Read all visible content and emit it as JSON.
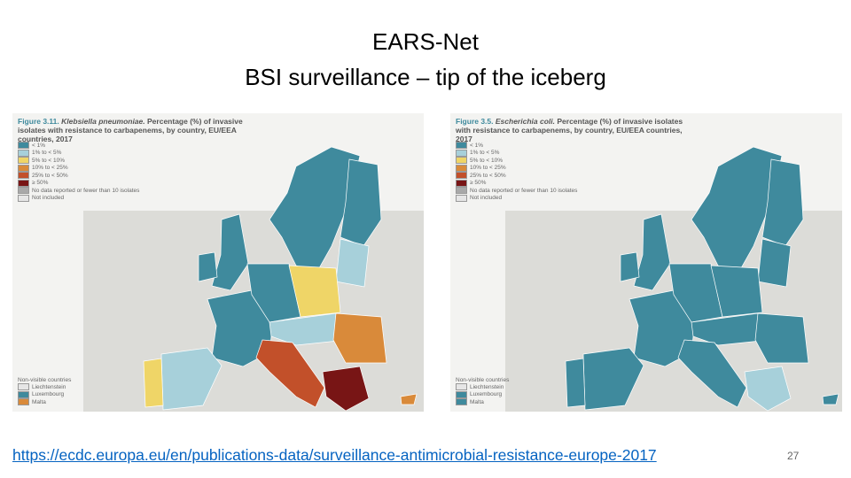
{
  "title_lines": [
    "EARS-Net",
    "BSI surveillance – tip of the iceberg"
  ],
  "maps": [
    {
      "figure": "Figure 3.11.",
      "species": "Klebsiella pneumoniae.",
      "caption": "Percentage (%) of invasive isolates with resistance to carbapenems, by country, EU/EEA countries, 2017",
      "legend": [
        {
          "label": "< 1%",
          "color": "#3f8a9d"
        },
        {
          "label": "1% to < 5%",
          "color": "#a7d0da"
        },
        {
          "label": "5% to < 10%",
          "color": "#efd567"
        },
        {
          "label": "10% to < 25%",
          "color": "#d98a3a"
        },
        {
          "label": "25% to < 50%",
          "color": "#c2502a"
        },
        {
          "label": "≥ 50%",
          "color": "#781515"
        },
        {
          "label": "No data reported or fewer than 10 isolates",
          "color": "#a9a9a9"
        },
        {
          "label": "Not included",
          "color": "#e6e6e6"
        }
      ],
      "non_visible_title": "Non-visible countries",
      "non_visible": [
        {
          "label": "Liechtenstein",
          "color": "#e6e6e6"
        },
        {
          "label": "Luxembourg",
          "color": "#3f8a9d"
        },
        {
          "label": "Malta",
          "color": "#d98a3a"
        }
      ]
    },
    {
      "figure": "Figure 3.5.",
      "species": "Escherichia coli.",
      "caption": "Percentage (%) of invasive isolates with resistance to carbapenems, by country, EU/EEA countries, 2017",
      "legend": [
        {
          "label": "< 1%",
          "color": "#3f8a9d"
        },
        {
          "label": "1% to < 5%",
          "color": "#a7d0da"
        },
        {
          "label": "5% to < 10%",
          "color": "#efd567"
        },
        {
          "label": "10% to < 25%",
          "color": "#d98a3a"
        },
        {
          "label": "25% to < 50%",
          "color": "#c2502a"
        },
        {
          "label": "≥ 50%",
          "color": "#781515"
        },
        {
          "label": "No data reported or fewer than 10 isolates",
          "color": "#a9a9a9"
        },
        {
          "label": "Not included",
          "color": "#e6e6e6"
        }
      ],
      "non_visible_title": "Non-visible countries",
      "non_visible": [
        {
          "label": "Liechtenstein",
          "color": "#e6e6e6"
        },
        {
          "label": "Luxembourg",
          "color": "#3f8a9d"
        },
        {
          "label": "Malta",
          "color": "#3f8a9d"
        }
      ]
    }
  ],
  "link": "https://ecdc.europa.eu/en/publications-data/surveillance-antimicrobial-resistance-europe-2017",
  "page_number": "27"
}
